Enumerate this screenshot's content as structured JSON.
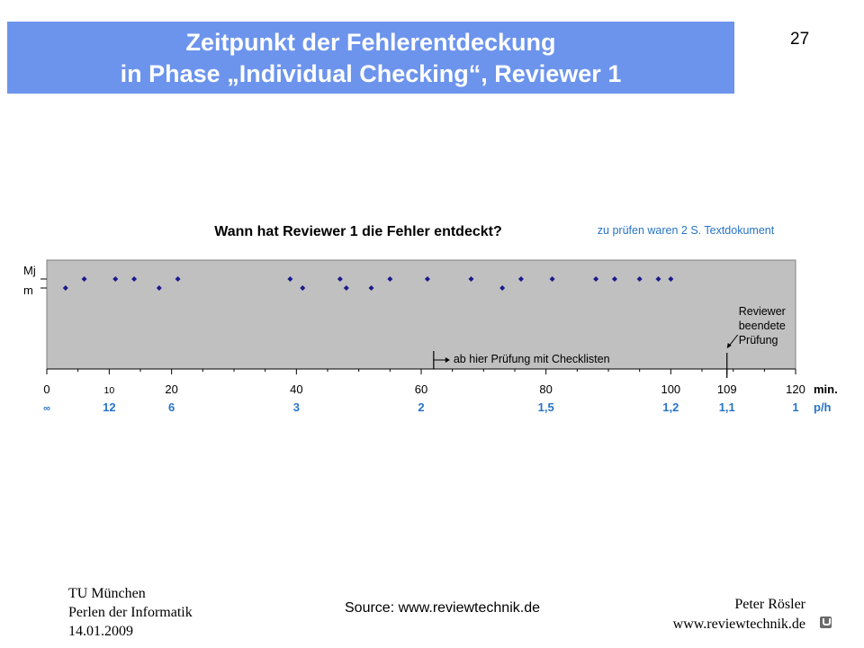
{
  "slide": {
    "title_line1": "Zeitpunkt der Fehlerentdeckung",
    "title_line2": "in Phase „Individual Checking“, Reviewer 1",
    "page_number": "27",
    "banner_color": "#6c94ec"
  },
  "footer": {
    "left_line1": "TU München",
    "left_line2": "Perlen der Informatik",
    "left_line3": "14.01.2009",
    "source": "Source: www.reviewtechnik.de",
    "right_line1": "Peter Rösler",
    "right_line2": "www.reviewtechnik.de",
    "logo_icon": "tum-logo-icon"
  },
  "chart_data": {
    "type": "scatter",
    "title": "Wann hat Reviewer 1 die Fehler entdeckt?",
    "subtitle": "zu prüfen waren 2 S. Textdokument",
    "xlim": [
      0,
      120
    ],
    "x_ticks": [
      0,
      10,
      20,
      40,
      60,
      80,
      100,
      109,
      120
    ],
    "x_tick_labels": [
      "0",
      "10",
      "20",
      "40",
      "60",
      "80",
      "100",
      "109",
      "120"
    ],
    "xlabel": "min.",
    "rate_label": "p/h",
    "rate_ticks": [
      {
        "x": 0,
        "label": "∞"
      },
      {
        "x": 10,
        "label": "12"
      },
      {
        "x": 20,
        "label": "6"
      },
      {
        "x": 40,
        "label": "3"
      },
      {
        "x": 60,
        "label": "2"
      },
      {
        "x": 80,
        "label": "1,5"
      },
      {
        "x": 100,
        "label": "1,2"
      },
      {
        "x": 109,
        "label": "1,1"
      },
      {
        "x": 120,
        "label": "1"
      }
    ],
    "y_levels": [
      "Mj",
      "m"
    ],
    "points": [
      {
        "x": 3,
        "level": "m"
      },
      {
        "x": 6,
        "level": "Mj"
      },
      {
        "x": 11,
        "level": "Mj"
      },
      {
        "x": 14,
        "level": "Mj"
      },
      {
        "x": 18,
        "level": "m"
      },
      {
        "x": 21,
        "level": "Mj"
      },
      {
        "x": 39,
        "level": "Mj"
      },
      {
        "x": 41,
        "level": "m"
      },
      {
        "x": 47,
        "level": "Mj"
      },
      {
        "x": 48,
        "level": "m"
      },
      {
        "x": 52,
        "level": "m"
      },
      {
        "x": 55,
        "level": "Mj"
      },
      {
        "x": 61,
        "level": "Mj"
      },
      {
        "x": 68,
        "level": "Mj"
      },
      {
        "x": 73,
        "level": "m"
      },
      {
        "x": 76,
        "level": "Mj"
      },
      {
        "x": 81,
        "level": "Mj"
      },
      {
        "x": 88,
        "level": "Mj"
      },
      {
        "x": 91,
        "level": "Mj"
      },
      {
        "x": 95,
        "level": "Mj"
      },
      {
        "x": 98,
        "level": "Mj"
      },
      {
        "x": 100,
        "level": "Mj"
      }
    ],
    "annotations": [
      {
        "x": 62,
        "text": "ab hier Prüfung mit Checklisten"
      },
      {
        "x": 109,
        "lines": [
          "Reviewer",
          "beendete",
          "Prüfung"
        ]
      }
    ],
    "plot_background": "#c0c0c0",
    "marker_color": "#1a1a8c",
    "rate_color": "#2874c8",
    "subtitle_color": "#2874c8"
  }
}
